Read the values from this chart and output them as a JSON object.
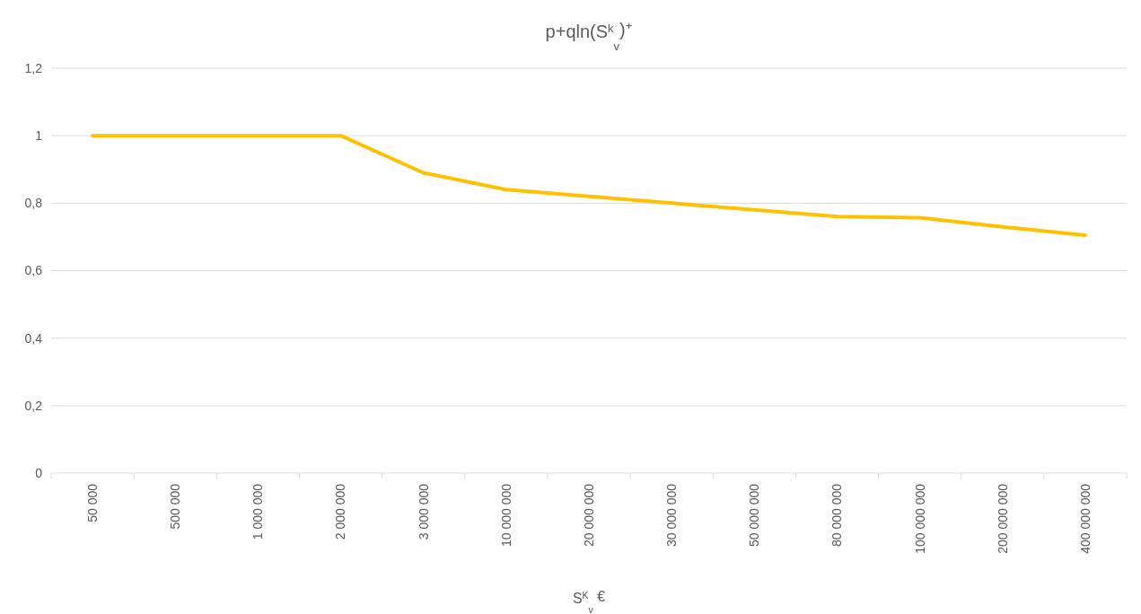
{
  "chart_data": {
    "type": "line",
    "title": "p+qln(S$^{k}$$_{v}$)$^{+}$",
    "xlabel": "S$^{K}$$_{v}$ €",
    "categories": [
      "50 000",
      "500 000",
      "1 000 000",
      "2 000 000",
      "3 000 000",
      "10 000 000",
      "20 000 000",
      "30 000 000",
      "50 000 000",
      "80 000 000",
      "100 000 000",
      "200 000 000",
      "400 000 000"
    ],
    "series": [
      {
        "color": "#ffc000",
        "values": [
          1,
          1,
          1,
          1,
          0.89,
          0.84,
          0.82,
          0.8,
          0.78,
          0.76,
          0.757,
          0.73,
          0.705
        ]
      }
    ],
    "ylim": [
      0,
      1.2
    ],
    "yticks": [
      {
        "value": 0,
        "label": "0"
      },
      {
        "value": 0.2,
        "label": "0,2"
      },
      {
        "value": 0.4,
        "label": "0,4"
      },
      {
        "value": 0.6,
        "label": "0,6"
      },
      {
        "value": 0.8,
        "label": "0,8"
      },
      {
        "value": 1,
        "label": "1"
      },
      {
        "value": 1.2,
        "label": "1,2"
      }
    ],
    "grid": "y",
    "marker": "none",
    "line_style": "solid"
  }
}
